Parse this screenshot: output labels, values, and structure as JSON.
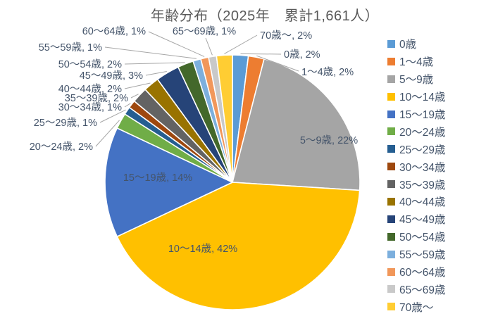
{
  "chart_data": {
    "type": "pie",
    "title": "年齢分布（2025年　累計1,661人）",
    "year": "2025年",
    "total_count": "1,661",
    "total_unit": "人",
    "categories": [
      "0歳",
      "1～4歳",
      "5～9歳",
      "10～14歳",
      "15～19歳",
      "20～24歳",
      "25～29歳",
      "30～34歳",
      "35～39歳",
      "40～44歳",
      "45～49歳",
      "50～54歳",
      "55～59歳",
      "60～64歳",
      "65～69歳",
      "70歳～"
    ],
    "values_pct": [
      2,
      2,
      22,
      42,
      14,
      2,
      1,
      1,
      2,
      2,
      3,
      2,
      1,
      1,
      1,
      2
    ],
    "slice_labels": [
      "0歳, 2%",
      "1～4歳, 2%",
      "5～9歳, 22%",
      "10～14歳, 42%",
      "15～19歳, 14%",
      "20～24歳, 2%",
      "25～29歳, 1%",
      "30～34歳, 1%",
      "35～39歳, 2%",
      "40～44歳, 2%",
      "45～49歳, 3%",
      "50～54歳, 2%",
      "55～59歳, 1%",
      "60～64歳, 1%",
      "65～69歳, 1%",
      "70歳～, 2%"
    ],
    "colors": [
      "#5B9BD5",
      "#ED7D31",
      "#A5A5A5",
      "#FFC000",
      "#4472C4",
      "#70AD47",
      "#255E91",
      "#9E480E",
      "#636363",
      "#997300",
      "#264478",
      "#43682B",
      "#7CAFDD",
      "#F1975A",
      "#C9C9C9",
      "#FFCD33"
    ],
    "legend_position": "right",
    "start_angle_deg": 0,
    "direction": "clockwise",
    "label_color": "#44546A",
    "leader_line_color": "#A6A6A6",
    "title_color": "#595959",
    "background": "#FFFFFF"
  }
}
